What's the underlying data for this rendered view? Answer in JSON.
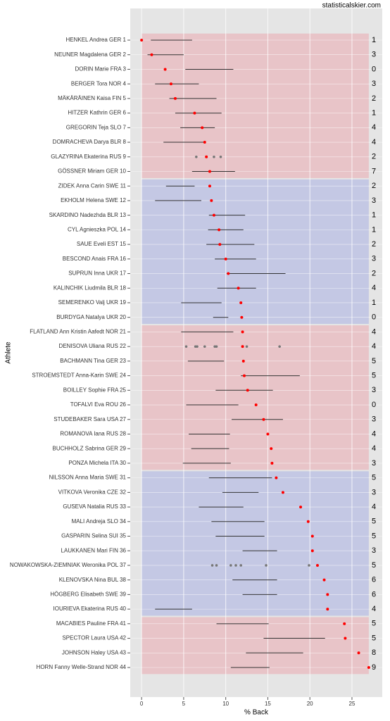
{
  "chart_data": {
    "type": "dotrange",
    "watermark": "statisticalskier.com",
    "x_label": "% Back",
    "y_label": "Athlete",
    "categories": [
      "HENKEL Andrea GER 1",
      "NEUNER Magdalena GER 2",
      "DORIN Marie FRA 3",
      "BERGER Tora NOR 4",
      "MÄKÄRÄINEN Kaisa FIN 5",
      "HITZER Kathrin GER 6",
      "GREGORIN Teja SLO 7",
      "DOMRACHEVA Darya BLR 8",
      "GLAZYRINA Ekaterina RUS 9",
      "GÖSSNER Miriam GER 10",
      "ZIDEK Anna Carin SWE 11",
      "EKHOLM Helena SWE 12",
      "SKARDINO Nadezhda BLR 13",
      "CYL Agnieszka POL 14",
      "SAUE Eveli EST 15",
      "BESCOND Anais FRA 16",
      "SUPRUN Inna UKR 17",
      "KALINCHIK Liudmila BLR 18",
      "SEMERENKO Valj UKR 19",
      "BURDYGA Natalya UKR 20",
      "FLATLAND Ann Kristin Aafedt NOR 21",
      "DENISOVA Uliana RUS 22",
      "BACHMANN Tina GER 23",
      "STROEMSTEDT Anna-Karin SWE 24",
      "BOILLEY Sophie FRA 25",
      "TOFALVI Eva ROU 26",
      "STUDEBAKER Sara USA 27",
      "ROMANOVA Iana RUS 28",
      "BUCHHOLZ Sabrina GER 29",
      "PONZA Michela ITA 30",
      "NILSSON Anna Maria SWE 31",
      "VITKOVA Veronika CZE 32",
      "GUSEVA Natalia RUS 33",
      "MALI Andreja SLO 34",
      "GASPARIN Selina SUI 35",
      "LAUKKANEN Mari FIN 36",
      "NOWAKOWSKA-ZIEMNIAK Weronika POL 37",
      "KLENOVSKA Nina BUL 38",
      "HÖGBERG Elisabeth SWE 39",
      "IOURIEVA Ekaterina RUS 40",
      "MACABIES Pauline FRA 41",
      "SPECTOR Laura USA 42",
      "JOHNSON Haley USA 43",
      "HORN Fanny Welle-Strand NOR 44"
    ],
    "values": [
      0,
      1.2,
      2.8,
      3.5,
      4.0,
      6.3,
      7.2,
      7.5,
      7.7,
      8.1,
      8.1,
      8.3,
      8.6,
      9.2,
      9.3,
      10.0,
      10.3,
      11.5,
      11.8,
      11.9,
      12.0,
      12.0,
      12.1,
      12.2,
      12.6,
      13.6,
      14.5,
      15.0,
      15.4,
      15.5,
      16.0,
      16.8,
      18.9,
      19.8,
      20.3,
      20.3,
      20.9,
      21.7,
      22.1,
      22.1,
      24.1,
      24.2,
      25.8,
      27.0
    ],
    "range_low": [
      1.1,
      0.7,
      5.2,
      1.6,
      3.3,
      4.0,
      4.6,
      2.6,
      null,
      6.0,
      2.9,
      1.6,
      8.0,
      7.9,
      7.7,
      8.7,
      10.1,
      9.0,
      4.7,
      8.5,
      4.7,
      null,
      5.5,
      11.8,
      8.8,
      5.3,
      10.7,
      5.6,
      5.9,
      4.9,
      8.0,
      9.6,
      6.8,
      8.3,
      8.8,
      12.0,
      null,
      10.8,
      12.0,
      1.6,
      8.9,
      14.5,
      12.4,
      10.6
    ],
    "range_high": [
      6.0,
      5.0,
      10.9,
      6.8,
      8.9,
      9.5,
      8.7,
      7.5,
      null,
      11.1,
      6.3,
      7.1,
      12.3,
      12.1,
      13.4,
      13.6,
      17.1,
      13.6,
      9.5,
      10.3,
      10.9,
      null,
      9.8,
      18.8,
      15.6,
      11.5,
      16.8,
      10.5,
      10.4,
      10.6,
      15.5,
      13.9,
      12.1,
      14.6,
      14.6,
      16.1,
      null,
      16.1,
      16.1,
      6.0,
      15.1,
      21.8,
      19.2,
      15.2
    ],
    "other_points": [
      [],
      [],
      [],
      [],
      [],
      [],
      [],
      [],
      [
        6.5,
        8.6,
        9.4
      ],
      [],
      [],
      [],
      [],
      [],
      [],
      [],
      [],
      [],
      [],
      [],
      [],
      [
        5.3,
        6.4,
        6.6,
        7.5,
        8.7,
        8.9,
        12.5,
        16.4
      ],
      [],
      [],
      [],
      [],
      [],
      [],
      [],
      [],
      [],
      [],
      [],
      [],
      [],
      [],
      [
        8.4,
        8.9,
        10.6,
        11.2,
        11.8,
        14.8,
        19.9
      ],
      [],
      [],
      [],
      [],
      [],
      [],
      []
    ],
    "right_labels": [
      1,
      3,
      0,
      3,
      2,
      1,
      4,
      4,
      2,
      7,
      2,
      3,
      1,
      1,
      2,
      3,
      2,
      4,
      1,
      0,
      4,
      4,
      5,
      5,
      3,
      0,
      3,
      4,
      4,
      3,
      5,
      3,
      4,
      5,
      5,
      3,
      5,
      6,
      6,
      4,
      5,
      5,
      8,
      9
    ],
    "dot_color": "#ff0000",
    "range_color": "#333333",
    "point_color": "#777777",
    "band_colors": [
      "#e8c4c8",
      "#c4c8e4"
    ],
    "xlim": [
      -1.35,
      28.6
    ],
    "xticks": [
      0,
      5,
      10,
      15,
      20,
      25
    ],
    "grid": true
  }
}
